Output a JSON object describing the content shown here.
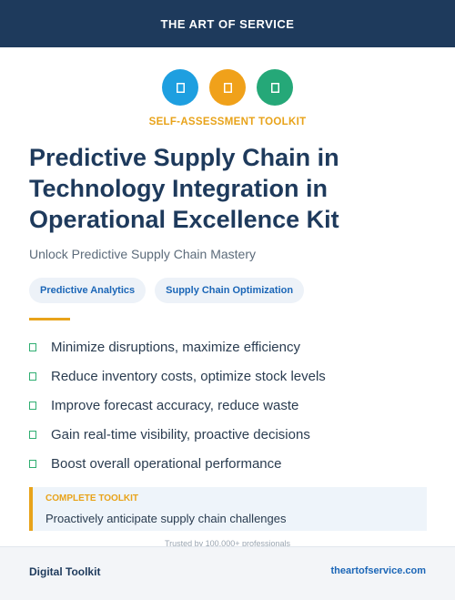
{
  "header": {
    "brand": "THE ART OF SERVICE"
  },
  "icons": [
    {
      "name": "blue-badge-icon",
      "color": "#1e9fe0"
    },
    {
      "name": "orange-badge-icon",
      "color": "#f0a11a"
    },
    {
      "name": "green-badge-icon",
      "color": "#25a878"
    }
  ],
  "hero": {
    "kicker": "SELF-ASSESSMENT TOOLKIT",
    "title": "Predictive Supply Chain in Technology Integration in Operational Excellence Kit",
    "subtitle": "Unlock Predictive Supply Chain Mastery"
  },
  "tags": [
    "Predictive Analytics",
    "Supply Chain Optimization"
  ],
  "benefits": [
    "Minimize disruptions, maximize efficiency",
    "Reduce inventory costs, optimize stock levels",
    "Improve forecast accuracy, reduce waste",
    "Gain real-time visibility, proactive decisions",
    "Boost overall operational performance"
  ],
  "callout": {
    "label": "COMPLETE TOOLKIT",
    "text": "Proactively anticipate supply chain challenges"
  },
  "trust_line": "Trusted by 100,000+ professionals",
  "footer": {
    "left": "Digital Toolkit",
    "right": "theartofservice.com"
  },
  "colors": {
    "navy": "#1e3a5c",
    "accent_orange": "#e8a31a",
    "link_blue": "#1b66b7",
    "check_green": "#2fae71"
  }
}
